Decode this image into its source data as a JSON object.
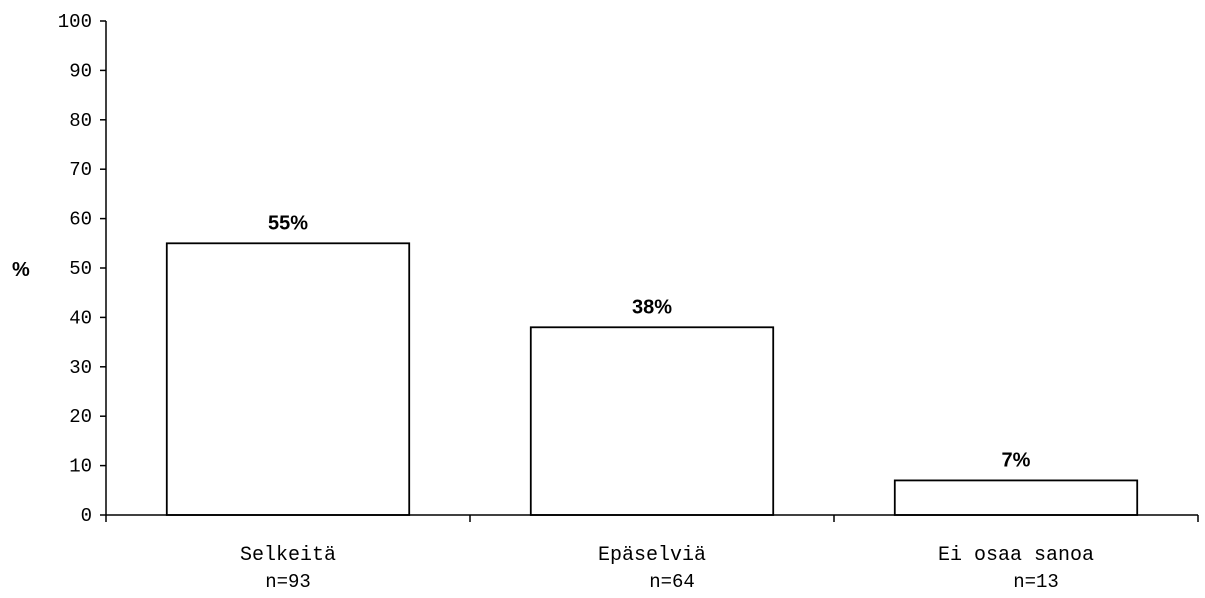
{
  "chart_data": {
    "type": "bar",
    "ylabel": "%",
    "ylim": [
      0,
      100
    ],
    "yticks": [
      0,
      10,
      20,
      30,
      40,
      50,
      60,
      70,
      80,
      90,
      100
    ],
    "categories": [
      "Selkeitä",
      "Epäselviä",
      "Ei osaa sanoa"
    ],
    "n_labels": [
      "n=93",
      "n=64",
      "n=13"
    ],
    "values": [
      55,
      38,
      7
    ],
    "data_labels": [
      "55%",
      "38%",
      "7%"
    ],
    "grid": false,
    "legend": "none"
  }
}
